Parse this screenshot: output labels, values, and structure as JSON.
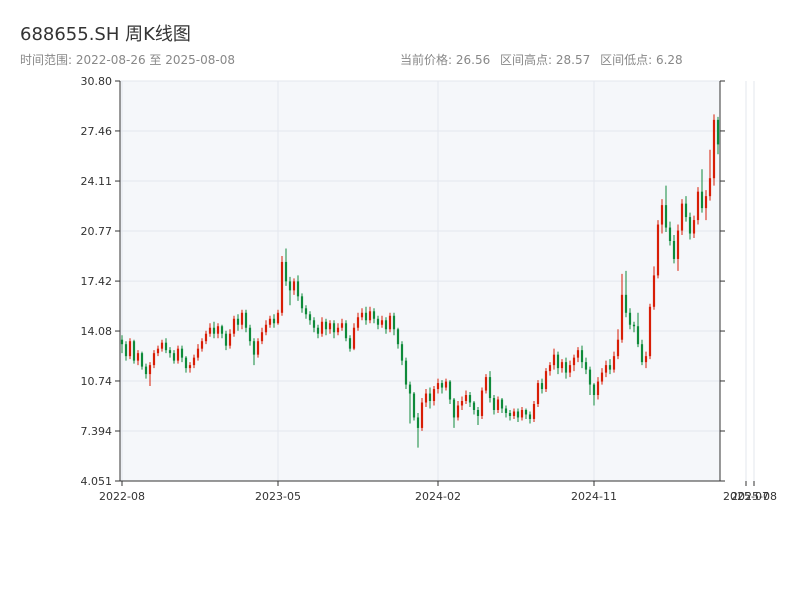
{
  "header": {
    "title": "688655.SH 周K线图",
    "date_range": "时间范围: 2022-08-26 至 2025-08-08",
    "current_price": "当前价格: 26.56",
    "range_high": "区间高点: 28.57",
    "range_low": "区间低点: 6.28"
  },
  "colors": {
    "up": "#d81e06",
    "down": "#0e8a3a",
    "plot_bg": "#f5f7fa",
    "grid": "#e3e7ee",
    "axis": "#333333"
  },
  "chart_data": {
    "type": "candlestick",
    "ticker": "688655.SH",
    "period": "weekly",
    "ylim": [
      4.051,
      30.8
    ],
    "yticks": [
      "4.051",
      "7.394",
      "10.74",
      "14.08",
      "17.42",
      "20.77",
      "24.11",
      "27.46",
      "30.80"
    ],
    "xticks": [
      {
        "label": "2022-08",
        "index": 0
      },
      {
        "label": "2023-05",
        "index": 39
      },
      {
        "label": "2024-02",
        "index": 79
      },
      {
        "label": "2024-11",
        "index": 118
      },
      {
        "label": "2025-07",
        "index": 156
      },
      {
        "label": "2025-08",
        "index": 158
      }
    ],
    "grid": true,
    "candles": [
      [
        13.5,
        13.2,
        13.8,
        12.6
      ],
      [
        13.2,
        12.4,
        13.4,
        12.1
      ],
      [
        12.4,
        13.4,
        13.6,
        12.2
      ],
      [
        13.4,
        12.1,
        13.5,
        11.9
      ],
      [
        12.1,
        12.6,
        12.8,
        11.8
      ],
      [
        12.6,
        11.7,
        12.7,
        11.5
      ],
      [
        11.7,
        11.2,
        11.9,
        10.9
      ],
      [
        11.2,
        11.8,
        12.0,
        10.4
      ],
      [
        11.8,
        12.6,
        12.8,
        11.6
      ],
      [
        12.6,
        12.9,
        13.1,
        12.4
      ],
      [
        12.9,
        13.3,
        13.5,
        12.7
      ],
      [
        13.3,
        12.8,
        13.6,
        12.6
      ],
      [
        12.8,
        12.6,
        13.0,
        12.3
      ],
      [
        12.6,
        12.1,
        12.8,
        11.9
      ],
      [
        12.1,
        12.9,
        13.1,
        11.9
      ],
      [
        12.9,
        12.3,
        13.1,
        12.0
      ],
      [
        12.3,
        11.6,
        12.4,
        11.3
      ],
      [
        11.6,
        11.8,
        12.0,
        11.3
      ],
      [
        11.8,
        12.3,
        12.5,
        11.6
      ],
      [
        12.3,
        12.9,
        13.2,
        12.1
      ],
      [
        12.9,
        13.4,
        13.6,
        12.7
      ],
      [
        13.4,
        13.9,
        14.1,
        13.2
      ],
      [
        13.9,
        14.3,
        14.6,
        13.7
      ],
      [
        14.3,
        13.9,
        14.7,
        13.6
      ],
      [
        13.9,
        14.4,
        14.6,
        13.6
      ],
      [
        14.4,
        13.9,
        14.5,
        13.6
      ],
      [
        13.9,
        13.1,
        14.1,
        12.8
      ],
      [
        13.1,
        13.9,
        14.2,
        12.9
      ],
      [
        13.9,
        14.9,
        15.1,
        13.7
      ],
      [
        14.9,
        14.5,
        15.2,
        14.1
      ],
      [
        14.5,
        15.3,
        15.5,
        14.2
      ],
      [
        15.3,
        14.3,
        15.5,
        14.0
      ],
      [
        14.3,
        13.4,
        14.5,
        13.1
      ],
      [
        13.4,
        12.5,
        13.6,
        11.8
      ],
      [
        12.5,
        13.4,
        13.6,
        12.3
      ],
      [
        13.4,
        14.0,
        14.3,
        13.2
      ],
      [
        14.0,
        14.5,
        14.8,
        13.8
      ],
      [
        14.5,
        14.9,
        15.1,
        14.3
      ],
      [
        14.9,
        14.6,
        15.2,
        14.3
      ],
      [
        14.6,
        15.3,
        15.5,
        14.5
      ],
      [
        15.3,
        18.7,
        19.1,
        15.1
      ],
      [
        18.7,
        17.4,
        19.6,
        17.1
      ],
      [
        17.4,
        16.8,
        17.7,
        15.8
      ],
      [
        16.8,
        17.4,
        17.6,
        16.5
      ],
      [
        17.4,
        16.4,
        17.8,
        16.1
      ],
      [
        16.4,
        15.6,
        16.6,
        15.3
      ],
      [
        15.6,
        15.2,
        15.8,
        14.9
      ],
      [
        15.2,
        14.8,
        15.4,
        14.5
      ],
      [
        14.8,
        14.3,
        15.0,
        14.0
      ],
      [
        14.3,
        13.9,
        14.5,
        13.6
      ],
      [
        13.9,
        14.7,
        15.0,
        13.7
      ],
      [
        14.7,
        14.2,
        14.9,
        13.8
      ],
      [
        14.2,
        14.6,
        14.8,
        13.9
      ],
      [
        14.6,
        14.0,
        14.8,
        13.6
      ],
      [
        14.0,
        14.3,
        14.6,
        13.8
      ],
      [
        14.3,
        14.6,
        14.9,
        14.1
      ],
      [
        14.6,
        13.6,
        14.8,
        13.4
      ],
      [
        13.6,
        12.9,
        13.8,
        12.7
      ],
      [
        12.9,
        14.3,
        14.6,
        12.8
      ],
      [
        14.3,
        15.0,
        15.3,
        14.1
      ],
      [
        15.0,
        15.3,
        15.6,
        14.8
      ],
      [
        15.3,
        14.8,
        15.7,
        14.5
      ],
      [
        14.8,
        15.4,
        15.7,
        14.6
      ],
      [
        15.4,
        14.9,
        15.6,
        14.6
      ],
      [
        14.9,
        14.5,
        15.1,
        14.2
      ],
      [
        14.5,
        14.8,
        15.1,
        14.3
      ],
      [
        14.8,
        14.2,
        15.0,
        13.9
      ],
      [
        14.2,
        15.1,
        15.3,
        14.0
      ],
      [
        15.1,
        14.2,
        15.3,
        13.8
      ],
      [
        14.2,
        13.2,
        14.3,
        12.9
      ],
      [
        13.2,
        12.1,
        13.4,
        11.8
      ],
      [
        12.1,
        10.5,
        12.3,
        10.2
      ],
      [
        10.5,
        9.9,
        10.7,
        7.9
      ],
      [
        9.9,
        8.3,
        10.0,
        8.1
      ],
      [
        8.3,
        7.6,
        8.6,
        6.28
      ],
      [
        7.6,
        9.3,
        9.6,
        7.4
      ],
      [
        9.3,
        9.9,
        10.2,
        9.0
      ],
      [
        9.9,
        9.4,
        10.3,
        8.9
      ],
      [
        9.4,
        10.2,
        10.4,
        9.1
      ],
      [
        10.2,
        10.6,
        10.9,
        9.9
      ],
      [
        10.6,
        10.3,
        10.8,
        9.9
      ],
      [
        10.3,
        10.7,
        10.9,
        10.1
      ],
      [
        10.7,
        9.5,
        10.8,
        9.2
      ],
      [
        9.5,
        8.3,
        9.6,
        7.6
      ],
      [
        8.3,
        9.1,
        9.4,
        8.1
      ],
      [
        9.1,
        9.4,
        9.7,
        8.8
      ],
      [
        9.4,
        9.8,
        10.1,
        9.2
      ],
      [
        9.8,
        9.3,
        10.0,
        9.0
      ],
      [
        9.3,
        8.8,
        9.4,
        8.5
      ],
      [
        8.8,
        8.4,
        9.0,
        7.8
      ],
      [
        8.4,
        10.1,
        10.3,
        8.2
      ],
      [
        10.1,
        11.0,
        11.2,
        9.9
      ],
      [
        11.0,
        9.6,
        11.4,
        9.3
      ],
      [
        9.6,
        8.8,
        9.8,
        8.5
      ],
      [
        8.8,
        9.5,
        9.7,
        8.6
      ],
      [
        9.5,
        8.9,
        9.6,
        8.6
      ],
      [
        8.9,
        8.6,
        9.1,
        8.3
      ],
      [
        8.6,
        8.4,
        8.8,
        8.1
      ],
      [
        8.4,
        8.7,
        8.9,
        8.2
      ],
      [
        8.7,
        8.3,
        8.9,
        8.0
      ],
      [
        8.3,
        8.8,
        9.0,
        8.1
      ],
      [
        8.8,
        8.5,
        8.9,
        8.2
      ],
      [
        8.5,
        8.2,
        8.7,
        7.9
      ],
      [
        8.2,
        9.2,
        9.4,
        8.0
      ],
      [
        9.2,
        10.6,
        10.8,
        9.0
      ],
      [
        10.6,
        10.2,
        10.9,
        9.9
      ],
      [
        10.2,
        11.4,
        11.6,
        10.0
      ],
      [
        11.4,
        11.8,
        12.0,
        11.1
      ],
      [
        11.8,
        12.5,
        12.9,
        11.5
      ],
      [
        12.5,
        11.6,
        12.7,
        11.2
      ],
      [
        11.6,
        12.0,
        12.2,
        11.3
      ],
      [
        12.0,
        11.3,
        12.3,
        10.9
      ],
      [
        11.3,
        11.8,
        12.1,
        11.0
      ],
      [
        11.8,
        12.3,
        12.5,
        11.4
      ],
      [
        12.3,
        12.8,
        13.0,
        12.0
      ],
      [
        12.8,
        12.0,
        13.1,
        11.6
      ],
      [
        12.0,
        11.5,
        12.3,
        11.2
      ],
      [
        11.5,
        10.5,
        11.7,
        9.8
      ],
      [
        10.5,
        9.8,
        10.6,
        9.1
      ],
      [
        9.8,
        10.7,
        11.0,
        9.5
      ],
      [
        10.7,
        11.3,
        11.6,
        10.5
      ],
      [
        11.3,
        11.8,
        12.1,
        11.0
      ],
      [
        11.8,
        11.5,
        12.2,
        11.2
      ],
      [
        11.5,
        12.4,
        12.7,
        11.3
      ],
      [
        12.4,
        13.5,
        14.2,
        12.2
      ],
      [
        13.5,
        16.5,
        17.9,
        13.3
      ],
      [
        16.5,
        15.3,
        18.1,
        15.0
      ],
      [
        15.3,
        14.5,
        15.6,
        14.2
      ],
      [
        14.5,
        14.4,
        14.7,
        14.0
      ],
      [
        14.4,
        13.2,
        15.3,
        13.0
      ],
      [
        13.2,
        12.0,
        13.5,
        11.8
      ],
      [
        12.0,
        12.4,
        12.7,
        11.6
      ],
      [
        12.4,
        15.7,
        15.9,
        12.2
      ],
      [
        15.7,
        17.8,
        18.4,
        15.5
      ],
      [
        17.8,
        21.2,
        21.5,
        17.6
      ],
      [
        21.2,
        22.5,
        22.9,
        20.6
      ],
      [
        22.5,
        21.0,
        23.8,
        20.7
      ],
      [
        21.0,
        20.1,
        21.4,
        19.8
      ],
      [
        20.1,
        18.9,
        20.5,
        18.6
      ],
      [
        18.9,
        20.8,
        21.2,
        18.1
      ],
      [
        20.8,
        22.6,
        22.9,
        20.5
      ],
      [
        22.6,
        21.7,
        23.1,
        21.4
      ],
      [
        21.7,
        20.6,
        22.0,
        20.2
      ],
      [
        20.6,
        21.5,
        21.8,
        20.3
      ],
      [
        21.5,
        23.4,
        23.7,
        21.2
      ],
      [
        23.4,
        22.3,
        24.9,
        22.0
      ],
      [
        22.3,
        23.1,
        23.5,
        21.5
      ],
      [
        23.1,
        24.3,
        26.2,
        22.8
      ],
      [
        24.3,
        28.2,
        28.57,
        23.8
      ],
      [
        28.2,
        26.56,
        28.4,
        25.9
      ]
    ]
  }
}
